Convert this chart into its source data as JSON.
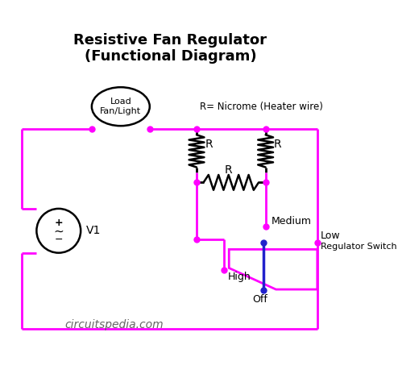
{
  "title": "Resistive Fan Regulator\n(Functional Diagram)",
  "wire_color": "#FF00FF",
  "resistor_color": "#000000",
  "dot_color": "#FF00FF",
  "blue_dot_color": "#2222CC",
  "bg_color": "#FFFFFF",
  "text_color": "#000000",
  "watermark": "circuitspedia.com",
  "annotation": "R= Nicrome (Heater wire)"
}
